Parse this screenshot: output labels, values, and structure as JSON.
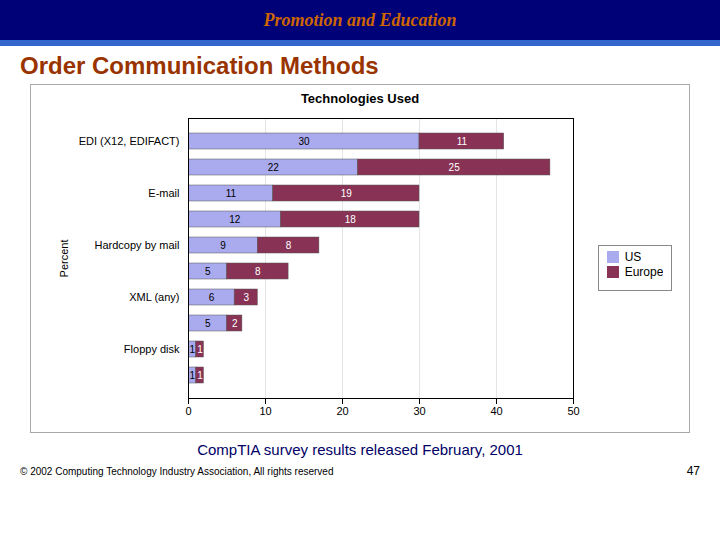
{
  "chart_data": {
    "type": "bar",
    "orientation": "horizontal",
    "stacked": true,
    "title": "Technologies Used",
    "ylabel": "Percent",
    "categories": [
      null,
      "Floppy disk",
      null,
      "XML (any)",
      null,
      "Hardcopy by mail",
      null,
      "E-mail",
      null,
      "EDI (X12, EDIFACT)"
    ],
    "series": [
      {
        "name": "US",
        "color": "#aaaaee",
        "values": [
          1,
          1,
          5,
          6,
          5,
          9,
          12,
          11,
          22,
          30
        ]
      },
      {
        "name": "Europe",
        "color": "#883355",
        "values": [
          1,
          1,
          2,
          3,
          8,
          8,
          18,
          19,
          25,
          11
        ]
      }
    ],
    "xlim": [
      0,
      50
    ],
    "xticks": [
      0,
      10,
      20,
      30,
      40,
      50
    ],
    "grid": true,
    "data_labels": true,
    "legend": "right",
    "annotations": [
      "Promotion and Education",
      "Order Communication Methods",
      "CompTIA survey results released February, 2001",
      "© 2002 Computing Technology Industry Association, All rights reserved",
      "47"
    ]
  }
}
